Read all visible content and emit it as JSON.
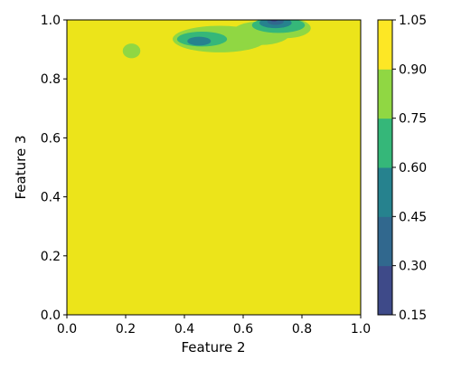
{
  "chart_data": {
    "type": "heatmap",
    "subtype": "filled-contour",
    "xlabel": "Feature 2",
    "ylabel": "Feature 3",
    "xlim": [
      0.0,
      1.0
    ],
    "ylim": [
      0.0,
      1.0
    ],
    "x_ticks": [
      "0.0",
      "0.2",
      "0.4",
      "0.6",
      "0.8",
      "1.0"
    ],
    "y_ticks": [
      "0.0",
      "0.2",
      "0.4",
      "0.6",
      "0.8",
      "1.0"
    ],
    "colorbar": {
      "levels": [
        0.15,
        0.3,
        0.45,
        0.6,
        0.75,
        0.9,
        1.05
      ],
      "tick_labels": [
        "0.15",
        "0.30",
        "0.45",
        "0.60",
        "0.75",
        "0.90",
        "1.05"
      ],
      "colors": [
        "#3e4a89",
        "#31688e",
        "#26828e",
        "#35b779",
        "#90d743",
        "#fde725"
      ]
    },
    "background_level_color": "#ece41a",
    "regions": [
      {
        "level": "0.75-0.90",
        "x": 0.22,
        "y": 0.895,
        "rx": 0.03,
        "ry": 0.025
      },
      {
        "level": "0.75-0.90",
        "x": 0.52,
        "y": 0.935,
        "rx": 0.16,
        "ry": 0.045
      },
      {
        "level": "0.75-0.90",
        "x": 0.66,
        "y": 0.955,
        "rx": 0.1,
        "ry": 0.04
      },
      {
        "level": "0.75-0.90",
        "x": 0.745,
        "y": 0.972,
        "rx": 0.085,
        "ry": 0.034
      },
      {
        "level": "0.60-0.75",
        "x": 0.46,
        "y": 0.935,
        "rx": 0.085,
        "ry": 0.025
      },
      {
        "level": "0.60-0.75",
        "x": 0.72,
        "y": 0.982,
        "rx": 0.09,
        "ry": 0.026
      },
      {
        "level": "0.45-0.60",
        "x": 0.45,
        "y": 0.928,
        "rx": 0.04,
        "ry": 0.015
      },
      {
        "level": "0.45-0.60",
        "x": 0.71,
        "y": 0.99,
        "rx": 0.055,
        "ry": 0.018
      },
      {
        "level": "0.30-0.45",
        "x": 0.71,
        "y": 0.995,
        "rx": 0.028,
        "ry": 0.012
      },
      {
        "level": "0.15-0.30",
        "x": 0.705,
        "y": 1.0,
        "rx": 0.012,
        "ry": 0.006
      }
    ]
  }
}
